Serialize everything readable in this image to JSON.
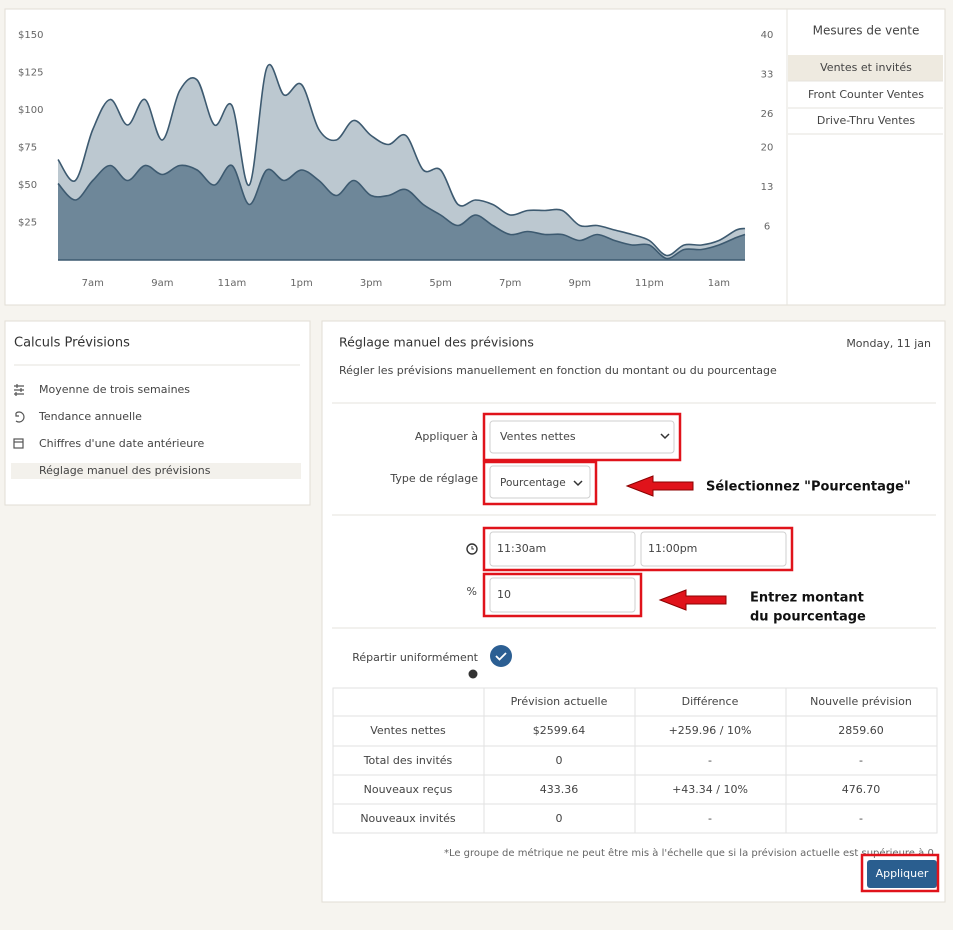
{
  "chart_data": {
    "type": "area",
    "x": [
      6,
      6.5,
      7,
      7.5,
      8,
      8.5,
      9,
      9.5,
      10,
      10.5,
      11,
      11.5,
      12,
      12.5,
      13,
      13.5,
      14,
      14.5,
      15,
      15.5,
      16,
      16.5,
      17,
      17.5,
      18,
      18.5,
      19,
      19.5,
      20,
      20.5,
      21,
      21.5,
      22,
      22.5,
      23,
      23.5,
      24,
      24.5,
      25,
      25.5,
      25.75
    ],
    "series": [
      {
        "color": "#bcc8d0",
        "values": [
          67,
          53,
          87,
          107,
          90,
          107,
          80,
          113,
          120,
          90,
          103,
          50,
          128,
          110,
          117,
          87,
          80,
          93,
          83,
          77,
          83,
          60,
          60,
          37,
          40,
          37,
          30,
          33,
          33,
          33,
          23,
          23,
          20,
          17,
          13,
          3,
          10,
          10,
          13,
          20,
          21
        ]
      },
      {
        "color": "#6e8799",
        "values": [
          51,
          40,
          53,
          63,
          53,
          63,
          57,
          63,
          60,
          50,
          63,
          37,
          60,
          53,
          60,
          53,
          43,
          53,
          43,
          43,
          47,
          37,
          30,
          23,
          30,
          23,
          17,
          19,
          17,
          17,
          13,
          17,
          13,
          10,
          10,
          1,
          7,
          7,
          10,
          15,
          17
        ]
      }
    ],
    "line_color": "#3d5a70",
    "xlim": [
      6,
      25.75
    ],
    "xticks": [
      {
        "value": 7,
        "label": "7am"
      },
      {
        "value": 9,
        "label": "9am"
      },
      {
        "value": 11,
        "label": "11am"
      },
      {
        "value": 13,
        "label": "1pm"
      },
      {
        "value": 15,
        "label": "3pm"
      },
      {
        "value": 17,
        "label": "5pm"
      },
      {
        "value": 19,
        "label": "7pm"
      },
      {
        "value": 21,
        "label": "9pm"
      },
      {
        "value": 23,
        "label": "11pm"
      },
      {
        "value": 25,
        "label": "1am"
      }
    ],
    "ylim": [
      0,
      150
    ],
    "yticks": [
      {
        "value": 25,
        "label": "$25"
      },
      {
        "value": 50,
        "label": "$50"
      },
      {
        "value": 75,
        "label": "$75"
      },
      {
        "value": 100,
        "label": "$100"
      },
      {
        "value": 125,
        "label": "$125"
      },
      {
        "value": 150,
        "label": "$150"
      }
    ],
    "y2lim": [
      0,
      40
    ],
    "y2ticks": [
      6,
      13,
      20,
      26,
      33,
      40
    ]
  },
  "sales_measures": {
    "title": "Mesures de vente",
    "items": [
      "Ventes et invités",
      "Front Counter Ventes",
      "Drive-Thru Ventes"
    ]
  },
  "forecast_calcs": {
    "title": "Calculs Prévisions",
    "items": [
      "Moyenne de trois semaines",
      "Tendance annuelle",
      "Chiffres d'une date antérieure",
      "Réglage manuel des prévisions"
    ]
  },
  "manual": {
    "title": "Réglage manuel des prévisions",
    "date": "Monday, 11 jan",
    "description": "Régler les prévisions manuellement en fonction du montant ou du pourcentage",
    "apply_to_label": "Appliquer à",
    "apply_to_value": "Ventes nettes",
    "type_label": "Type de réglage",
    "type_value": "Pourcentage",
    "start_time": "11:30am",
    "end_time": "11:00pm",
    "percent_label": "%",
    "percent_value": 10,
    "distribute_label": "Répartir uniformément",
    "table": {
      "headers": [
        "Prévision actuelle",
        "Différence",
        "Nouvelle prévision"
      ],
      "rows": [
        [
          "Ventes nettes",
          "$2599.64",
          "+259.96 / 10%",
          "2859.60"
        ],
        [
          "Total des invités",
          "0",
          "-",
          "-"
        ],
        [
          "Nouveaux reçus",
          "433.36",
          "+43.34 / 10%",
          "476.70"
        ],
        [
          "Nouveaux invités",
          "0",
          "-",
          "-"
        ]
      ]
    },
    "note": "*Le groupe de métrique ne peut être mis à l'échelle que si la prévision actuelle est supérieure à 0.",
    "apply_button": "Appliquer"
  },
  "annotations": {
    "select": "Sélectionnez \"Pourcentage\"",
    "enter": [
      "Entrez montant",
      "du pourcentage"
    ]
  }
}
